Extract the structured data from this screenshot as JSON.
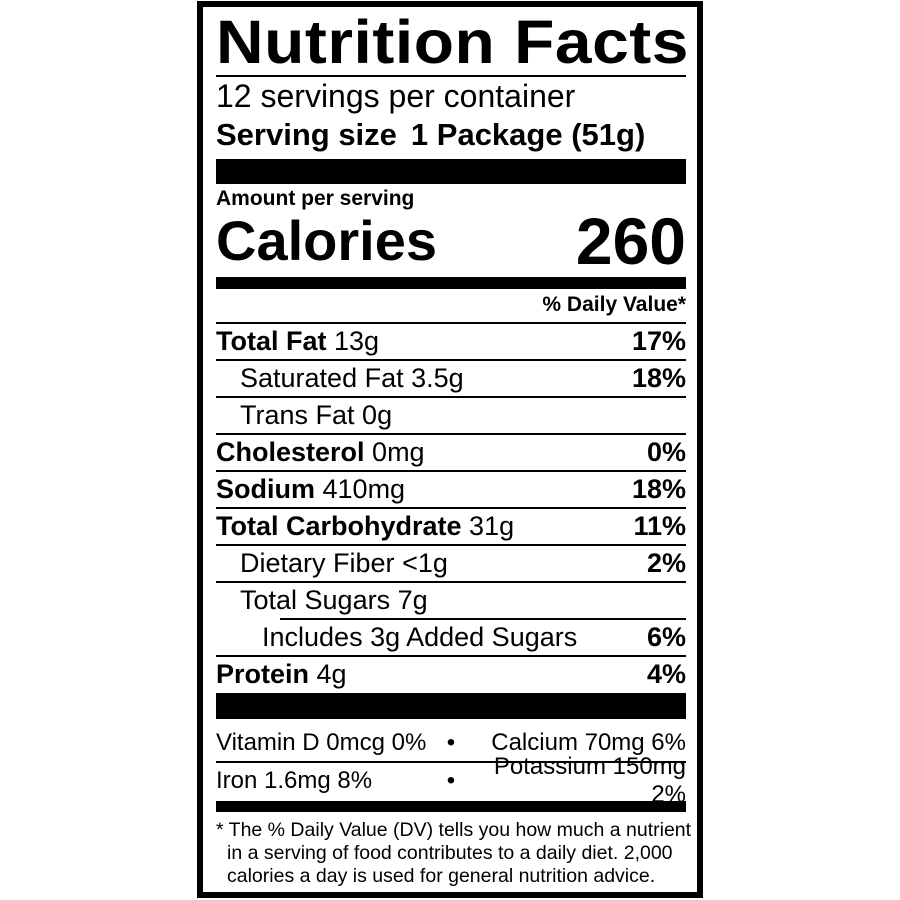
{
  "title": "Nutrition Facts",
  "servings_per_container": "12 servings per container",
  "serving_size_label": "Serving size",
  "serving_size_value": "1 Package (51g)",
  "amount_per_serving": "Amount per serving",
  "calories_label": "Calories",
  "calories_value": "260",
  "daily_value_header": "% Daily Value*",
  "nutrients": [
    {
      "name": "Total Fat",
      "amount": "13g",
      "dv": "17%"
    },
    {
      "name": "Saturated Fat",
      "amount": "3.5g",
      "dv": "18%"
    },
    {
      "name": "Trans Fat",
      "amount": "0g",
      "dv": ""
    },
    {
      "name": "Cholesterol",
      "amount": "0mg",
      "dv": "0%"
    },
    {
      "name": "Sodium",
      "amount": "410mg",
      "dv": "18%"
    },
    {
      "name": "Total Carbohydrate",
      "amount": "31g",
      "dv": "11%"
    },
    {
      "name": "Dietary Fiber",
      "amount": "<1g",
      "dv": "2%"
    },
    {
      "name": "Total Sugars",
      "amount": "7g",
      "dv": ""
    },
    {
      "name": "Includes 3g Added Sugars",
      "amount": "",
      "dv": "6%"
    },
    {
      "name": "Protein",
      "amount": "4g",
      "dv": "4%"
    }
  ],
  "vitamins": [
    {
      "left": "Vitamin D 0mcg 0%",
      "bullet": "•",
      "right": "Calcium 70mg 6%"
    },
    {
      "left": "Iron 1.6mg 8%",
      "bullet": "•",
      "right": "Potassium 150mg 2%"
    }
  ],
  "footnote": [
    "* The % Daily Value (DV) tells you how much a nutrient",
    "in a serving of food contributes to a daily diet. 2,000",
    "calories a day is used for general nutrition advice."
  ]
}
